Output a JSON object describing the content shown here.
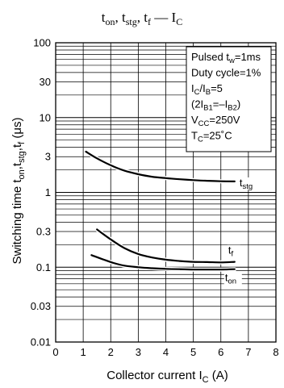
{
  "chart_data": {
    "type": "line",
    "title": {
      "parts": [
        {
          "main": "t",
          "sub": "on"
        },
        {
          "sep": ", "
        },
        {
          "main": "t",
          "sub": "stg"
        },
        {
          "sep": ", "
        },
        {
          "main": "t",
          "sub": "f"
        },
        {
          "sep": " — "
        },
        {
          "main": "I",
          "sub": "C"
        }
      ]
    },
    "xlabel": {
      "text": "Collector current  I",
      "sub": "C",
      "unit": "  (A)"
    },
    "ylabel": {
      "text": "Switching time  t",
      "parts": [
        {
          "main": "Switching time  t",
          "sub": "on"
        },
        {
          "main": ",t",
          "sub": "stg"
        },
        {
          "main": ",t",
          "sub": "f"
        },
        {
          "main": "  (μs)"
        }
      ]
    },
    "xlim": [
      0,
      8
    ],
    "ylim": [
      0.01,
      100
    ],
    "yscale": "log",
    "grid": true,
    "xticks": [
      "0",
      "1",
      "2",
      "3",
      "4",
      "5",
      "6",
      "7",
      "8"
    ],
    "yticks": [
      {
        "value": 0.01,
        "label": "0.01"
      },
      {
        "value": 0.03,
        "label": "0.03"
      },
      {
        "value": 0.1,
        "label": "0.1"
      },
      {
        "value": 0.3,
        "label": "0.3"
      },
      {
        "value": 1,
        "label": "1"
      },
      {
        "value": 3,
        "label": "3"
      },
      {
        "value": 10,
        "label": "10"
      },
      {
        "value": 30,
        "label": "30"
      },
      {
        "value": 100,
        "label": "100"
      }
    ],
    "series": [
      {
        "name": "t_stg",
        "label": {
          "main": "t",
          "sub": "stg"
        },
        "x": [
          1.1,
          1.5,
          2.0,
          2.5,
          3.0,
          3.5,
          4.0,
          4.5,
          5.0,
          5.5,
          6.0,
          6.5
        ],
        "y": [
          3.5,
          2.85,
          2.3,
          1.95,
          1.75,
          1.62,
          1.55,
          1.5,
          1.46,
          1.43,
          1.41,
          1.4
        ]
      },
      {
        "name": "t_f",
        "label": {
          "main": "t",
          "sub": "f"
        },
        "x": [
          1.5,
          2.0,
          2.5,
          3.0,
          3.5,
          4.0,
          4.5,
          5.0,
          5.5,
          6.0,
          6.5
        ],
        "y": [
          0.32,
          0.235,
          0.18,
          0.15,
          0.135,
          0.126,
          0.121,
          0.118,
          0.117,
          0.116,
          0.118
        ]
      },
      {
        "name": "t_on",
        "label": {
          "main": "t",
          "sub": "on"
        },
        "x": [
          1.3,
          1.7,
          2.1,
          2.5,
          3.0,
          3.5,
          4.0,
          4.5,
          5.0,
          5.5,
          6.0,
          6.5
        ],
        "y": [
          0.145,
          0.128,
          0.114,
          0.105,
          0.1,
          0.097,
          0.095,
          0.094,
          0.093,
          0.093,
          0.093,
          0.094
        ]
      }
    ],
    "conditions": [
      {
        "parts": [
          {
            "t": "Pulsed t"
          },
          {
            "sub": "w"
          },
          {
            "t": "=1ms"
          }
        ]
      },
      {
        "parts": [
          {
            "t": "Duty cycle=1%"
          }
        ]
      },
      {
        "parts": [
          {
            "t": "I"
          },
          {
            "sub": "C"
          },
          {
            "t": "/I"
          },
          {
            "sub": "B"
          },
          {
            "t": "=5"
          }
        ]
      },
      {
        "parts": [
          {
            "t": "(2I"
          },
          {
            "sub": "B1"
          },
          {
            "t": "=–I"
          },
          {
            "sub": "B2"
          },
          {
            "t": ")"
          }
        ]
      },
      {
        "parts": [
          {
            "t": "V"
          },
          {
            "sub": "CC"
          },
          {
            "t": "=250V"
          }
        ]
      },
      {
        "parts": [
          {
            "t": "T"
          },
          {
            "sub": "C"
          },
          {
            "t": "=25˚C"
          }
        ]
      }
    ]
  },
  "colors": {
    "line": "#000000",
    "grid": "#000000",
    "background": "#ffffff"
  }
}
